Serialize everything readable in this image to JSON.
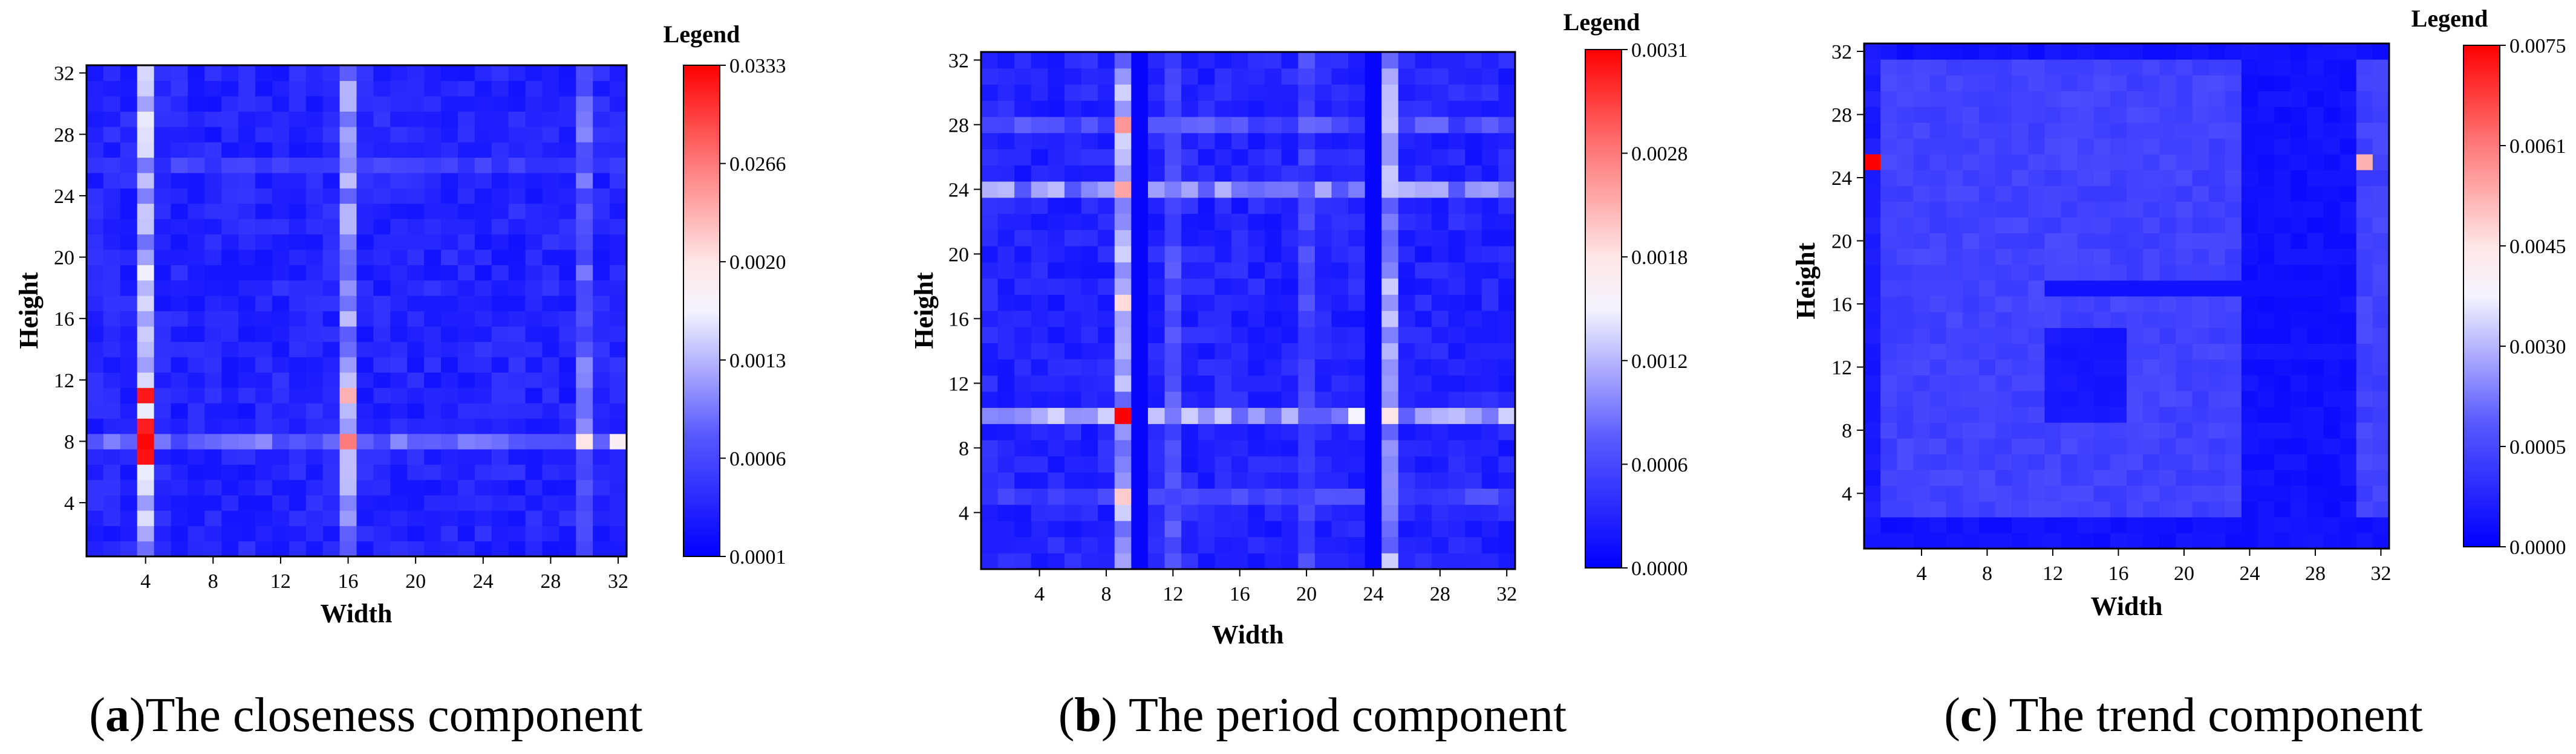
{
  "chart_data": [
    {
      "type": "heatmap",
      "panel": "a",
      "caption_letter": "a",
      "caption_open": "(",
      "caption_close": ")",
      "caption_text": "The closeness component",
      "xlabel": "Width",
      "ylabel": "Height",
      "x_ticks": [
        4,
        8,
        12,
        16,
        20,
        24,
        28,
        32
      ],
      "y_ticks": [
        4,
        8,
        12,
        16,
        20,
        24,
        28,
        32
      ],
      "grid_size": 32,
      "legend_title": "Legend",
      "legend_ticks": [
        "0.0333",
        "0.0266",
        "0.0020",
        "0.0013",
        "0.0006",
        "0.0001"
      ],
      "hot_columns": [
        {
          "col": 4,
          "level": 0.45
        },
        {
          "col": 16,
          "level": 0.38
        },
        {
          "col": 30,
          "level": 0.3
        }
      ],
      "hot_rows": [
        {
          "row": 8,
          "level": 0.3
        },
        {
          "row": 26,
          "level": 0.2
        }
      ],
      "peaks": [
        {
          "col": 4,
          "row": 7,
          "level": 0.97
        },
        {
          "col": 4,
          "row": 8,
          "level": 0.99
        },
        {
          "col": 4,
          "row": 9,
          "level": 0.95
        },
        {
          "col": 4,
          "row": 11,
          "level": 0.96
        },
        {
          "col": 16,
          "row": 8,
          "level": 0.8
        },
        {
          "col": 16,
          "row": 11,
          "level": 0.7
        },
        {
          "col": 30,
          "row": 8,
          "level": 0.6
        },
        {
          "col": 32,
          "row": 8,
          "level": 0.55
        }
      ]
    },
    {
      "type": "heatmap",
      "panel": "b",
      "caption_letter": "b",
      "caption_open": "(",
      "caption_close": ")",
      "caption_text": " The period component",
      "xlabel": "Width",
      "ylabel": "Height",
      "x_ticks": [
        4,
        8,
        12,
        16,
        20,
        24,
        28,
        32
      ],
      "y_ticks": [
        4,
        8,
        12,
        16,
        20,
        24,
        28,
        32
      ],
      "grid_size": 32,
      "legend_title": "Legend",
      "legend_ticks": [
        "0.0031",
        "0.0028",
        "0.0018",
        "0.0012",
        "0.0006",
        "0.0000"
      ],
      "hot_columns": [
        {
          "col": 9,
          "level": 0.42
        },
        {
          "col": 25,
          "level": 0.4
        },
        {
          "col": 12,
          "level": 0.25
        },
        {
          "col": 20,
          "level": 0.22
        }
      ],
      "hot_rows": [
        {
          "row": 10,
          "level": 0.42
        },
        {
          "row": 24,
          "level": 0.38
        },
        {
          "row": 28,
          "level": 0.25
        },
        {
          "row": 5,
          "level": 0.22
        }
      ],
      "dark_columns": [
        10,
        24
      ],
      "peaks": [
        {
          "col": 9,
          "row": 10,
          "level": 1.0
        },
        {
          "col": 9,
          "row": 24,
          "level": 0.72
        },
        {
          "col": 9,
          "row": 28,
          "level": 0.75
        },
        {
          "col": 9,
          "row": 17,
          "level": 0.62
        },
        {
          "col": 9,
          "row": 5,
          "level": 0.65
        },
        {
          "col": 25,
          "row": 10,
          "level": 0.6
        },
        {
          "col": 23,
          "row": 10,
          "level": 0.5
        }
      ]
    },
    {
      "type": "heatmap",
      "panel": "c",
      "caption_letter": "c",
      "caption_open": "(",
      "caption_close": ")",
      "caption_text": " The trend component",
      "xlabel": "Width",
      "ylabel": "Height",
      "x_ticks": [
        4,
        8,
        12,
        16,
        20,
        24,
        28,
        32
      ],
      "y_ticks": [
        4,
        8,
        12,
        16,
        20,
        24,
        28,
        32
      ],
      "grid_size": 32,
      "legend_title": "Legend",
      "legend_ticks": [
        "0.0075",
        "0.0061",
        "0.0045",
        "0.0030",
        "0.0005",
        "0.0000"
      ],
      "hot_columns": [],
      "hot_rows": [],
      "peaks": [
        {
          "col": 1,
          "row": 25,
          "level": 1.0
        },
        {
          "col": 31,
          "row": 25,
          "level": 0.7
        }
      ]
    }
  ]
}
